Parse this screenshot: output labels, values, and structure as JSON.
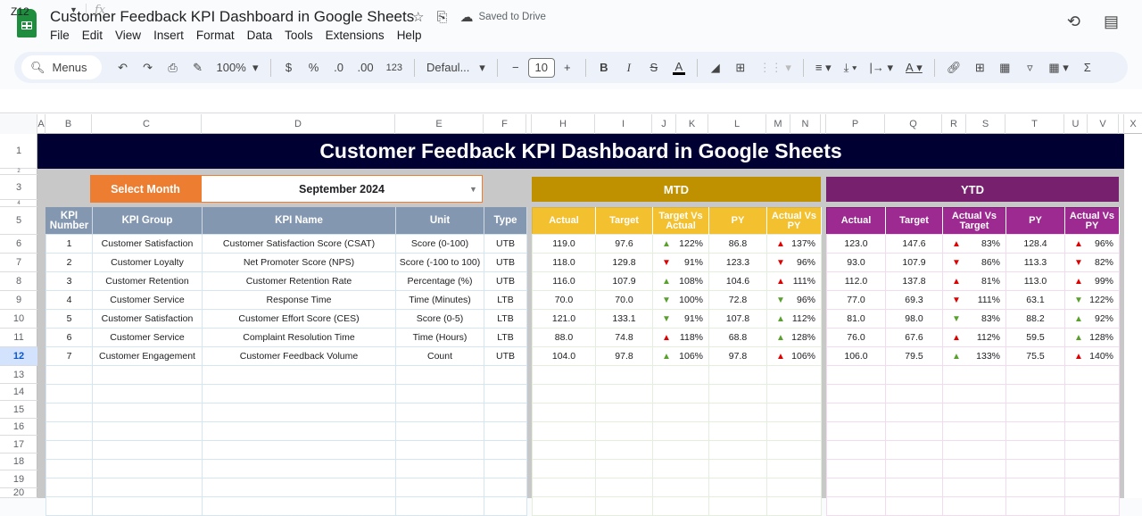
{
  "app": {
    "doc_title": "Customer Feedback KPI Dashboard in Google Sheets",
    "saved_status": "Saved to Drive",
    "menu": [
      "File",
      "Edit",
      "View",
      "Insert",
      "Format",
      "Data",
      "Tools",
      "Extensions",
      "Help"
    ],
    "icons": {
      "star": "☆",
      "move": "⎘",
      "cloud": "☁",
      "history": "⟲",
      "comments": "▤"
    }
  },
  "toolbar": {
    "menus_label": "Menus",
    "zoom": "100%",
    "currency": "$",
    "percent": "%",
    "dec_decrease": ".0",
    "dec_increase": ".00",
    "number_format": "123",
    "font": "Defaul...",
    "font_size": "10",
    "minus": "−",
    "plus": "+",
    "bold": "B",
    "italic": "I",
    "strike": "S",
    "text_color": "A",
    "sum": "Σ"
  },
  "formula_bar": {
    "name_box": "Z12",
    "fx": "fx",
    "formula": ""
  },
  "columns": [
    "A",
    "B",
    "C",
    "D",
    "E",
    "F",
    "H",
    "I",
    "J",
    "K",
    "L",
    "M",
    "N",
    "P",
    "Q",
    "R",
    "S",
    "T",
    "U",
    "V",
    "X"
  ],
  "rows": [
    "1",
    "2",
    "3",
    "4",
    "5",
    "6",
    "7",
    "8",
    "9",
    "10",
    "11",
    "12",
    "13",
    "14",
    "15",
    "16",
    "17",
    "18",
    "19",
    "20"
  ],
  "selected_row": "12",
  "dashboard": {
    "title": "Customer Feedback KPI Dashboard in Google Sheets",
    "select_month_label": "Select Month",
    "selected_month": "September 2024",
    "mtd_label": "MTD",
    "ytd_label": "YTD",
    "colors": {
      "banner": "#000033",
      "select": "#ed7d31",
      "mtd": "#bf9000",
      "mtd_header": "#f3c02f",
      "ytd": "#76206e",
      "ytd_header": "#9c2a91",
      "kpi_header": "#8497b0",
      "up_good": "#5aa02c",
      "bad": "#e00000"
    },
    "kpi_headers": [
      "KPI Number",
      "KPI Group",
      "KPI Name",
      "Unit",
      "Type"
    ],
    "mtd_headers": [
      "Actual",
      "Target",
      "Target Vs Actual",
      "PY",
      "Actual Vs PY"
    ],
    "ytd_headers": [
      "Actual",
      "Target",
      "Actual Vs Target",
      "PY",
      "Actual Vs PY"
    ],
    "kpis": [
      {
        "num": "1",
        "group": "Customer Satisfaction",
        "name": "Customer Satisfaction Score (CSAT)",
        "unit": "Score (0-100)",
        "type": "UTB",
        "mtd": {
          "actual": "119.0",
          "target": "97.6",
          "tva_icon": "▲",
          "tva_class": "up-g",
          "tva": "122%",
          "py": "86.8",
          "avp_icon": "▲",
          "avp_class": "up-r",
          "avp": "137%"
        },
        "ytd": {
          "actual": "123.0",
          "target": "147.6",
          "avt_icon": "▲",
          "avt_class": "up-r",
          "avt": "83%",
          "py": "128.4",
          "avp_icon": "▲",
          "avp_class": "up-r",
          "avp": "96%"
        }
      },
      {
        "num": "2",
        "group": "Customer Loyalty",
        "name": "Net Promoter Score (NPS)",
        "unit": "Score (-100 to 100)",
        "type": "UTB",
        "mtd": {
          "actual": "118.0",
          "target": "129.8",
          "tva_icon": "▼",
          "tva_class": "dn-r",
          "tva": "91%",
          "py": "123.3",
          "avp_icon": "▼",
          "avp_class": "dn-r",
          "avp": "96%"
        },
        "ytd": {
          "actual": "93.0",
          "target": "107.9",
          "avt_icon": "▼",
          "avt_class": "dn-r",
          "avt": "86%",
          "py": "113.3",
          "avp_icon": "▼",
          "avp_class": "dn-r",
          "avp": "82%"
        }
      },
      {
        "num": "3",
        "group": "Customer Retention",
        "name": "Customer Retention Rate",
        "unit": "Percentage (%)",
        "type": "UTB",
        "mtd": {
          "actual": "116.0",
          "target": "107.9",
          "tva_icon": "▲",
          "tva_class": "up-g",
          "tva": "108%",
          "py": "104.6",
          "avp_icon": "▲",
          "avp_class": "up-r",
          "avp": "111%"
        },
        "ytd": {
          "actual": "112.0",
          "target": "137.8",
          "avt_icon": "▲",
          "avt_class": "up-r",
          "avt": "81%",
          "py": "113.0",
          "avp_icon": "▲",
          "avp_class": "up-r",
          "avp": "99%"
        }
      },
      {
        "num": "4",
        "group": "Customer Service",
        "name": "Response Time",
        "unit": "Time (Minutes)",
        "type": "LTB",
        "mtd": {
          "actual": "70.0",
          "target": "70.0",
          "tva_icon": "▼",
          "tva_class": "dn-g",
          "tva": "100%",
          "py": "72.8",
          "avp_icon": "▼",
          "avp_class": "dn-g",
          "avp": "96%"
        },
        "ytd": {
          "actual": "77.0",
          "target": "69.3",
          "avt_icon": "▼",
          "avt_class": "dn-r",
          "avt": "111%",
          "py": "63.1",
          "avp_icon": "▼",
          "avp_class": "dn-g",
          "avp": "122%"
        }
      },
      {
        "num": "5",
        "group": "Customer Satisfaction",
        "name": "Customer Effort Score (CES)",
        "unit": "Score (0-5)",
        "type": "LTB",
        "mtd": {
          "actual": "121.0",
          "target": "133.1",
          "tva_icon": "▼",
          "tva_class": "dn-g",
          "tva": "91%",
          "py": "107.8",
          "avp_icon": "▲",
          "avp_class": "up-g",
          "avp": "112%"
        },
        "ytd": {
          "actual": "81.0",
          "target": "98.0",
          "avt_icon": "▼",
          "avt_class": "dn-g",
          "avt": "83%",
          "py": "88.2",
          "avp_icon": "▲",
          "avp_class": "up-g",
          "avp": "92%"
        }
      },
      {
        "num": "6",
        "group": "Customer Service",
        "name": "Complaint Resolution Time",
        "unit": "Time (Hours)",
        "type": "LTB",
        "mtd": {
          "actual": "88.0",
          "target": "74.8",
          "tva_icon": "▲",
          "tva_class": "up-r",
          "tva": "118%",
          "py": "68.8",
          "avp_icon": "▲",
          "avp_class": "up-g",
          "avp": "128%"
        },
        "ytd": {
          "actual": "76.0",
          "target": "67.6",
          "avt_icon": "▲",
          "avt_class": "up-r",
          "avt": "112%",
          "py": "59.5",
          "avp_icon": "▲",
          "avp_class": "up-g",
          "avp": "128%"
        }
      },
      {
        "num": "7",
        "group": "Customer Engagement",
        "name": "Customer Feedback Volume",
        "unit": "Count",
        "type": "UTB",
        "mtd": {
          "actual": "104.0",
          "target": "97.8",
          "tva_icon": "▲",
          "tva_class": "up-g",
          "tva": "106%",
          "py": "97.8",
          "avp_icon": "▲",
          "avp_class": "up-r",
          "avp": "106%"
        },
        "ytd": {
          "actual": "106.0",
          "target": "79.5",
          "avt_icon": "▲",
          "avt_class": "up-g",
          "avt": "133%",
          "py": "75.5",
          "avp_icon": "▲",
          "avp_class": "up-r",
          "avp": "140%"
        }
      }
    ]
  }
}
